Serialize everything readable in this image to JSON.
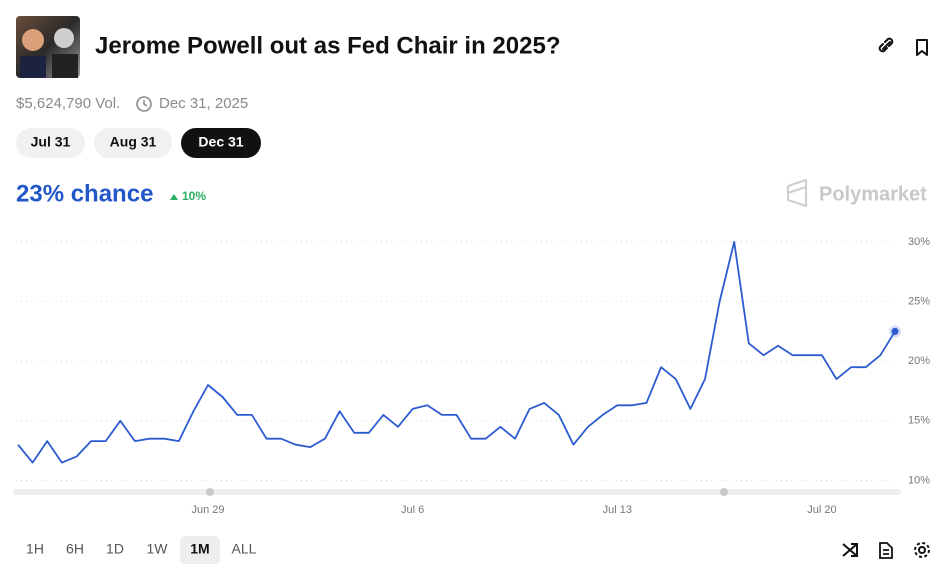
{
  "header": {
    "title": "Jerome Powell out as Fed Chair in 2025?",
    "volume": "$5,624,790 Vol.",
    "end_date": "Dec 31, 2025"
  },
  "tabs": {
    "items": [
      "Jul 31",
      "Aug 31",
      "Dec 31"
    ],
    "active": 2
  },
  "summary": {
    "chance": "23% chance",
    "change": "10%",
    "brand": "Polymarket"
  },
  "ranges": {
    "items": [
      "1H",
      "6H",
      "1D",
      "1W",
      "1M",
      "ALL"
    ],
    "active": 4
  },
  "chart_data": {
    "type": "line",
    "categories": [
      null,
      null,
      null,
      null,
      null,
      null,
      null,
      null,
      null,
      null,
      null,
      null,
      null,
      "Jun 29",
      null,
      null,
      null,
      null,
      null,
      null,
      null,
      null,
      null,
      null,
      null,
      null,
      null,
      "Jul 6",
      null,
      null,
      null,
      null,
      null,
      null,
      null,
      null,
      null,
      null,
      null,
      null,
      null,
      "Jul 13",
      null,
      null,
      null,
      null,
      null,
      null,
      null,
      null,
      null,
      null,
      null,
      null,
      null,
      "Jul 20",
      null,
      null,
      null,
      null,
      null
    ],
    "series": [
      {
        "name": "Dec 31",
        "color": "#2d5bd0",
        "values": [
          13,
          11.5,
          13.3,
          11.5,
          12,
          13.3,
          13.3,
          15,
          13.3,
          13.5,
          13.5,
          13.3,
          15.8,
          18,
          17,
          15.5,
          15.5,
          13.5,
          13.5,
          13,
          12.8,
          13.5,
          15.8,
          14,
          14,
          15.5,
          14.5,
          16,
          16.3,
          15.5,
          15.5,
          13.5,
          13.5,
          14.5,
          13.5,
          16,
          16.5,
          15.5,
          13,
          14.5,
          15.5,
          16.3,
          16.3,
          16.5,
          19.5,
          18.5,
          16,
          18.5,
          25,
          30,
          21.5,
          20.5,
          21.3,
          20.5,
          20.5,
          20.5,
          18.5,
          19.5,
          19.5,
          20.5,
          22.5
        ]
      }
    ],
    "ylim": [
      9.2,
      31
    ],
    "yticks": [
      {
        "value": 10,
        "label": "10%"
      },
      {
        "value": 15,
        "label": "15%"
      },
      {
        "value": 20,
        "label": "20%"
      },
      {
        "value": 25,
        "label": "25%"
      },
      {
        "value": 30,
        "label": "30%"
      }
    ],
    "grid": true
  }
}
